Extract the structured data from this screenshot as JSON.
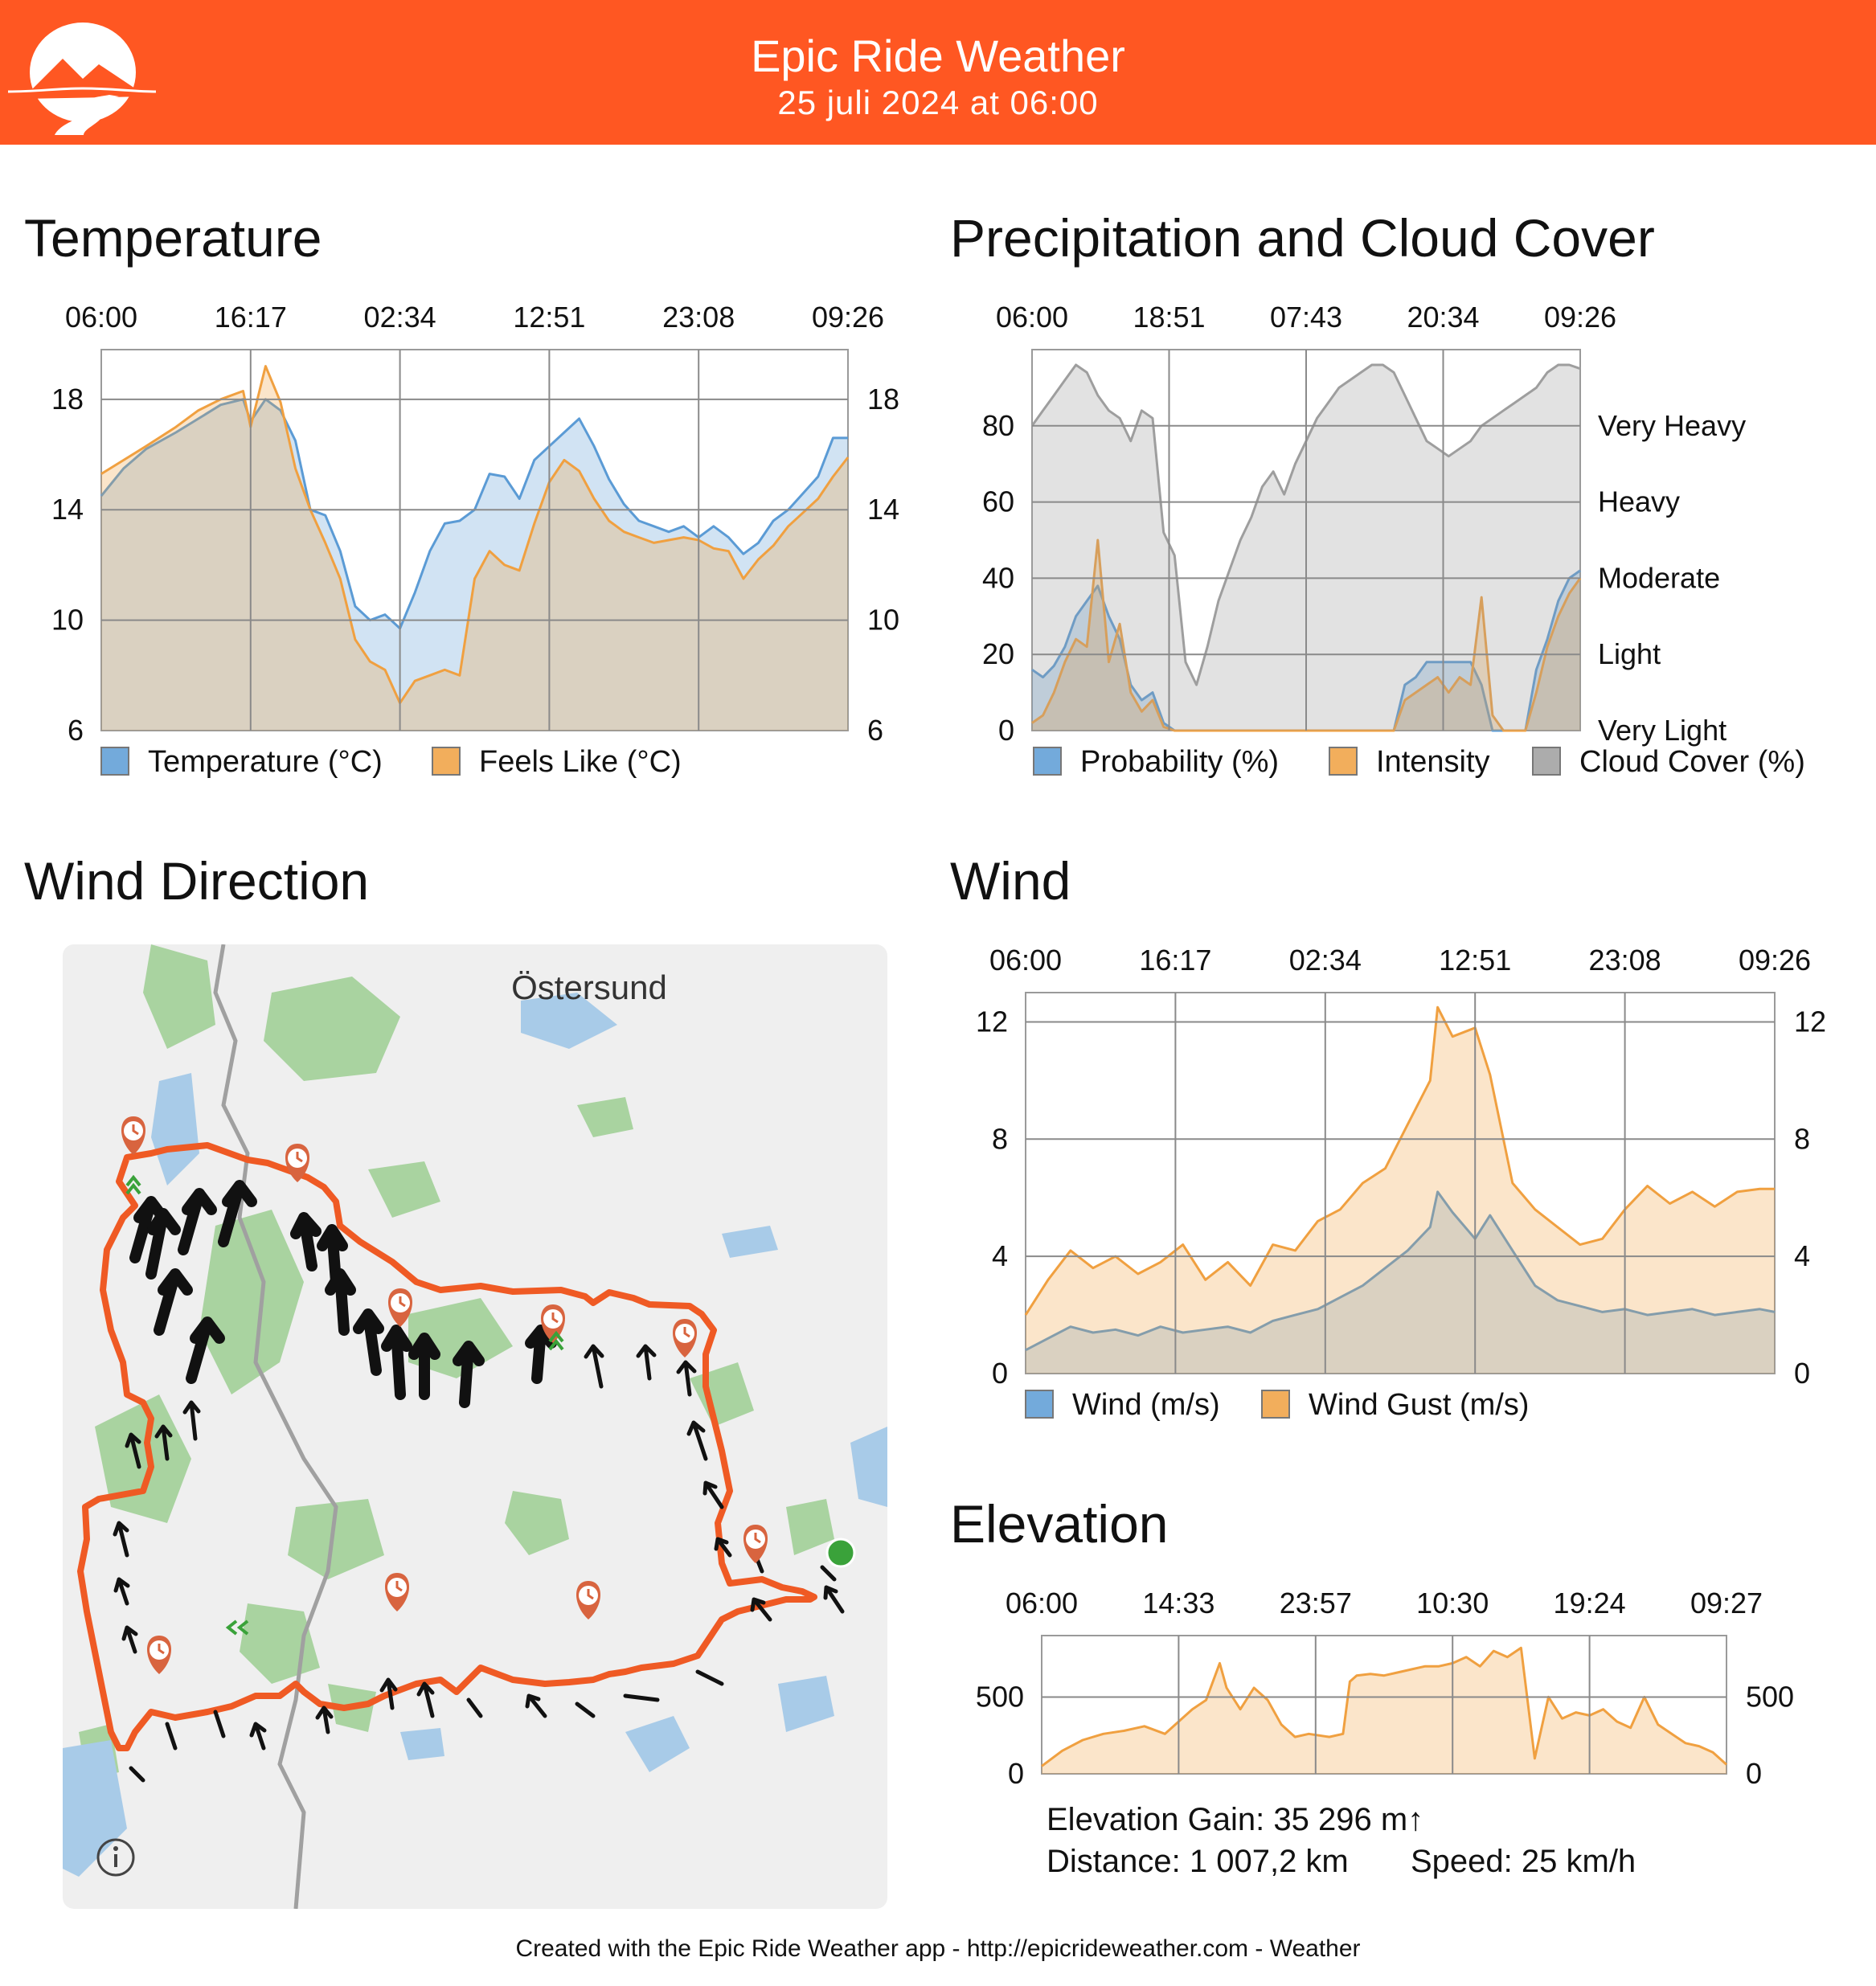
{
  "header": {
    "title": "Epic Ride Weather",
    "date": "25 juli 2024 at 06:00"
  },
  "colors": {
    "brand": "#ff5722",
    "blue": "#5b9bd5",
    "orange": "#f0a040",
    "gray": "#9e9e9e",
    "route": "#ef5a24"
  },
  "sections": {
    "temperature": "Temperature",
    "precipitation": "Precipitation and Cloud Cover",
    "wind_direction": "Wind Direction",
    "wind": "Wind",
    "elevation": "Elevation"
  },
  "map": {
    "city_label": "Östersund",
    "info_icon": "info-icon"
  },
  "elevation_stats": {
    "gain": "Elevation Gain: 35 296 m↑",
    "distance": "Distance: 1 007,2 km",
    "speed": "Speed: 25 km/h"
  },
  "footer": {
    "credit": "Created with the Epic Ride Weather app - http://epicrideweather.com - ",
    "weather": "Weather"
  },
  "chart_data": [
    {
      "id": "temperature",
      "type": "area",
      "x_ticks": [
        "06:00",
        "16:17",
        "02:34",
        "12:51",
        "23:08",
        "09:26"
      ],
      "y_ticks": [
        6,
        10,
        14,
        18
      ],
      "ylim": [
        6,
        19.8
      ],
      "x": [
        0,
        0.03,
        0.06,
        0.1,
        0.13,
        0.16,
        0.19,
        0.2,
        0.22,
        0.24,
        0.26,
        0.28,
        0.3,
        0.32,
        0.34,
        0.36,
        0.38,
        0.4,
        0.42,
        0.44,
        0.46,
        0.48,
        0.5,
        0.52,
        0.54,
        0.56,
        0.58,
        0.6,
        0.62,
        0.64,
        0.66,
        0.68,
        0.7,
        0.72,
        0.74,
        0.76,
        0.78,
        0.8,
        0.82,
        0.84,
        0.86,
        0.88,
        0.9,
        0.92,
        0.94,
        0.96,
        0.98,
        1.0
      ],
      "series": [
        {
          "name": "Temperature (°C)",
          "color": "#5b9bd5",
          "values": [
            14.5,
            15.5,
            16.2,
            16.8,
            17.3,
            17.8,
            18.0,
            17.2,
            18.0,
            17.6,
            16.5,
            14.0,
            13.8,
            12.5,
            10.5,
            10.0,
            10.2,
            9.7,
            11.0,
            12.5,
            13.5,
            13.6,
            14.0,
            15.3,
            15.2,
            14.4,
            15.8,
            16.3,
            16.8,
            17.3,
            16.3,
            15.1,
            14.2,
            13.6,
            13.4,
            13.2,
            13.4,
            13.0,
            13.4,
            13.0,
            12.4,
            12.8,
            13.6,
            14.0,
            14.6,
            15.2,
            16.6,
            16.6
          ]
        },
        {
          "name": "Feels Like (°C)",
          "color": "#f0a040",
          "values": [
            15.3,
            15.8,
            16.3,
            17.0,
            17.6,
            18.0,
            18.3,
            17.0,
            19.2,
            17.9,
            15.5,
            14.0,
            12.8,
            11.5,
            9.3,
            8.5,
            8.2,
            7.0,
            7.8,
            8.0,
            8.2,
            8.0,
            11.5,
            12.5,
            12.0,
            11.8,
            13.5,
            15.0,
            15.8,
            15.4,
            14.4,
            13.6,
            13.2,
            13.0,
            12.8,
            12.9,
            13.0,
            12.9,
            12.6,
            12.5,
            11.5,
            12.2,
            12.7,
            13.4,
            13.9,
            14.4,
            15.2,
            15.9
          ]
        }
      ]
    },
    {
      "id": "precipitation",
      "type": "area",
      "x_ticks": [
        "06:00",
        "18:51",
        "07:43",
        "20:34",
        "09:26"
      ],
      "y_ticks": [
        0,
        20,
        40,
        60,
        80
      ],
      "right_labels": [
        "Very Light",
        "Light",
        "Moderate",
        "Heavy",
        "Very Heavy"
      ],
      "ylim": [
        0,
        100
      ],
      "x": [
        0,
        0.02,
        0.04,
        0.06,
        0.08,
        0.1,
        0.12,
        0.14,
        0.16,
        0.18,
        0.2,
        0.22,
        0.24,
        0.26,
        0.28,
        0.3,
        0.32,
        0.34,
        0.36,
        0.38,
        0.4,
        0.42,
        0.44,
        0.46,
        0.48,
        0.5,
        0.52,
        0.54,
        0.56,
        0.58,
        0.6,
        0.62,
        0.64,
        0.66,
        0.68,
        0.7,
        0.72,
        0.74,
        0.76,
        0.78,
        0.8,
        0.82,
        0.84,
        0.86,
        0.88,
        0.9,
        0.92,
        0.94,
        0.96,
        0.98,
        1.0
      ],
      "series": [
        {
          "name": "Probability (%)",
          "color": "#5b9bd5",
          "values": [
            16,
            14,
            17,
            22,
            30,
            34,
            38,
            30,
            24,
            12,
            8,
            10,
            2,
            0,
            0,
            0,
            0,
            0,
            0,
            0,
            0,
            0,
            0,
            0,
            0,
            0,
            0,
            0,
            0,
            0,
            0,
            0,
            0,
            0,
            12,
            14,
            18,
            18,
            18,
            18,
            18,
            12,
            0,
            0,
            0,
            0,
            16,
            24,
            34,
            40,
            42
          ]
        },
        {
          "name": "Intensity",
          "color": "#f0a040",
          "values": [
            2,
            4,
            10,
            18,
            24,
            22,
            50,
            18,
            28,
            10,
            5,
            8,
            1,
            0,
            0,
            0,
            0,
            0,
            0,
            0,
            0,
            0,
            0,
            0,
            0,
            0,
            0,
            0,
            0,
            0,
            0,
            0,
            0,
            0,
            8,
            10,
            12,
            14,
            10,
            14,
            12,
            35,
            4,
            0,
            0,
            0,
            10,
            22,
            30,
            36,
            40
          ]
        },
        {
          "name": "Cloud Cover (%)",
          "color": "#9e9e9e",
          "values": [
            80,
            84,
            88,
            92,
            96,
            94,
            88,
            84,
            82,
            76,
            84,
            82,
            52,
            46,
            18,
            12,
            22,
            34,
            42,
            50,
            56,
            64,
            68,
            62,
            70,
            76,
            82,
            86,
            90,
            92,
            94,
            96,
            96,
            94,
            88,
            82,
            76,
            74,
            72,
            74,
            76,
            80,
            82,
            84,
            86,
            88,
            90,
            94,
            96,
            96,
            95
          ]
        }
      ]
    },
    {
      "id": "wind",
      "type": "area",
      "x_ticks": [
        "06:00",
        "16:17",
        "02:34",
        "12:51",
        "23:08",
        "09:26"
      ],
      "y_ticks": [
        0,
        4,
        8,
        12
      ],
      "ylim": [
        0,
        13
      ],
      "x": [
        0,
        0.03,
        0.06,
        0.09,
        0.12,
        0.15,
        0.18,
        0.21,
        0.24,
        0.27,
        0.3,
        0.33,
        0.36,
        0.39,
        0.42,
        0.45,
        0.48,
        0.51,
        0.54,
        0.55,
        0.57,
        0.6,
        0.62,
        0.65,
        0.68,
        0.71,
        0.74,
        0.77,
        0.8,
        0.83,
        0.86,
        0.89,
        0.92,
        0.95,
        0.98,
        1.0
      ],
      "series": [
        {
          "name": "Wind (m/s)",
          "color": "#5b9bd5",
          "values": [
            0.8,
            1.2,
            1.6,
            1.4,
            1.5,
            1.3,
            1.6,
            1.4,
            1.5,
            1.6,
            1.4,
            1.8,
            2.0,
            2.2,
            2.6,
            3.0,
            3.6,
            4.2,
            5.0,
            6.2,
            5.5,
            4.6,
            5.4,
            4.2,
            3.0,
            2.5,
            2.3,
            2.1,
            2.2,
            2.0,
            2.1,
            2.2,
            2.0,
            2.1,
            2.2,
            2.1
          ]
        },
        {
          "name": "Wind Gust (m/s)",
          "color": "#f0a040",
          "values": [
            2.0,
            3.2,
            4.2,
            3.6,
            4.0,
            3.4,
            3.8,
            4.4,
            3.2,
            3.8,
            3.0,
            4.4,
            4.2,
            5.2,
            5.6,
            6.5,
            7.0,
            8.5,
            10.0,
            12.5,
            11.5,
            11.8,
            10.2,
            6.5,
            5.6,
            5.0,
            4.4,
            4.6,
            5.6,
            6.4,
            5.8,
            6.2,
            5.7,
            6.2,
            6.3,
            6.3
          ]
        }
      ]
    },
    {
      "id": "elevation",
      "type": "area",
      "x_ticks": [
        "06:00",
        "14:33",
        "23:57",
        "10:30",
        "19:24",
        "09:27"
      ],
      "y_ticks": [
        0,
        500
      ],
      "ylim": [
        0,
        900
      ],
      "x": [
        0,
        0.03,
        0.06,
        0.09,
        0.12,
        0.15,
        0.18,
        0.2,
        0.22,
        0.24,
        0.26,
        0.27,
        0.29,
        0.31,
        0.33,
        0.35,
        0.37,
        0.39,
        0.42,
        0.44,
        0.45,
        0.46,
        0.48,
        0.5,
        0.52,
        0.54,
        0.56,
        0.58,
        0.6,
        0.62,
        0.64,
        0.66,
        0.68,
        0.7,
        0.72,
        0.74,
        0.76,
        0.78,
        0.8,
        0.82,
        0.84,
        0.86,
        0.88,
        0.9,
        0.92,
        0.94,
        0.96,
        0.98,
        1.0
      ],
      "series": [
        {
          "name": "Elevation",
          "color": "#f0a040",
          "values": [
            50,
            150,
            220,
            260,
            280,
            310,
            260,
            340,
            420,
            480,
            720,
            560,
            420,
            560,
            480,
            320,
            240,
            260,
            240,
            260,
            600,
            640,
            650,
            640,
            660,
            680,
            700,
            700,
            720,
            760,
            700,
            800,
            760,
            820,
            100,
            500,
            360,
            400,
            380,
            420,
            340,
            300,
            500,
            320,
            260,
            200,
            180,
            140,
            60
          ]
        }
      ]
    }
  ]
}
